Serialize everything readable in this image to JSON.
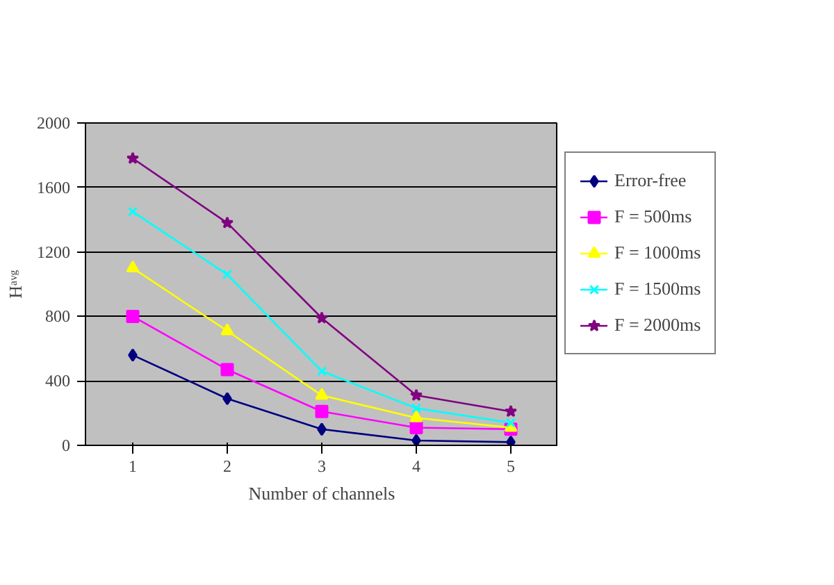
{
  "chart_data": {
    "type": "line",
    "xlabel": "Number of channels",
    "ylabel": "Hᵃᵛᵍ",
    "categories": [
      "1",
      "2",
      "3",
      "4",
      "5"
    ],
    "ylim": [
      0,
      2000
    ],
    "yticks": [
      0,
      400,
      800,
      1200,
      1600,
      2000
    ],
    "grid": "y",
    "legend": "right",
    "series": [
      {
        "name": "Error-free",
        "color": "#000080",
        "marker": "diamond",
        "values": [
          560,
          290,
          100,
          30,
          20
        ]
      },
      {
        "name": "F = 500ms",
        "color": "#ff00ff",
        "marker": "square",
        "values": [
          800,
          470,
          210,
          110,
          100
        ]
      },
      {
        "name": "F = 1000ms",
        "color": "#ffff00",
        "marker": "triangle",
        "values": [
          1100,
          710,
          310,
          170,
          110
        ]
      },
      {
        "name": "F = 1500ms",
        "color": "#00ffff",
        "marker": "cross",
        "values": [
          1450,
          1060,
          460,
          230,
          140
        ]
      },
      {
        "name": "F = 2000ms",
        "color": "#800080",
        "marker": "star",
        "values": [
          1780,
          1380,
          790,
          310,
          210
        ]
      }
    ]
  }
}
